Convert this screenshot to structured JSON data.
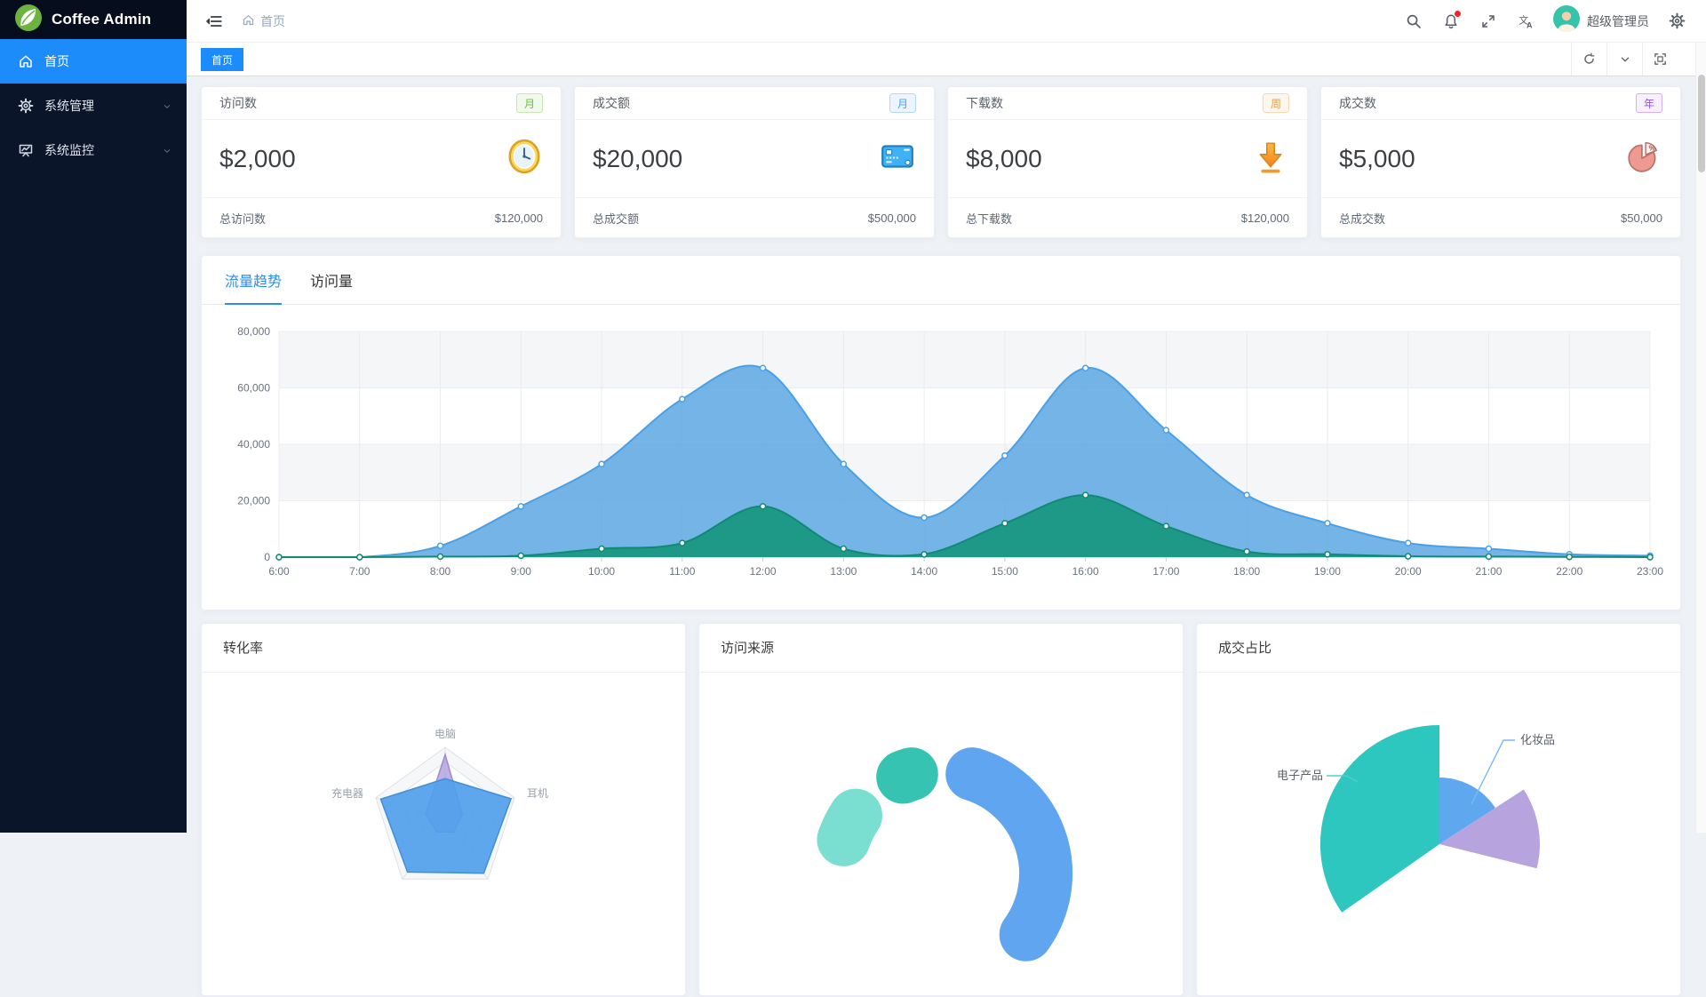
{
  "app": {
    "title": "Coffee Admin"
  },
  "sidebar": {
    "items": [
      {
        "label": "首页",
        "icon": "home-icon",
        "active": true,
        "expandable": false
      },
      {
        "label": "系统管理",
        "icon": "gear-icon",
        "active": false,
        "expandable": true
      },
      {
        "label": "系统监控",
        "icon": "monitor-icon",
        "active": false,
        "expandable": true
      }
    ]
  },
  "navbar": {
    "breadcrumb": "首页",
    "username": "超级管理员",
    "icons": [
      "menu-fold-icon",
      "home-icon",
      "search-icon",
      "bell-icon",
      "fullscreen-icon",
      "translate-icon",
      "gear-icon"
    ],
    "bell_has_dot": true
  },
  "tabsbar": {
    "active_tab": "首页",
    "icons": [
      "refresh-icon",
      "chevron-down-icon",
      "maximize-icon"
    ]
  },
  "stat_cards": [
    {
      "title": "访问数",
      "badge": {
        "text": "月",
        "type": "green"
      },
      "value": "$2,000",
      "icon": "clock-icon",
      "foot_label": "总访问数",
      "foot_value": "$120,000"
    },
    {
      "title": "成交额",
      "badge": {
        "text": "月",
        "type": "blue"
      },
      "value": "$20,000",
      "icon": "credit-card-icon",
      "foot_label": "总成交额",
      "foot_value": "$500,000"
    },
    {
      "title": "下载数",
      "badge": {
        "text": "周",
        "type": "orange"
      },
      "value": "$8,000",
      "icon": "download-icon",
      "foot_label": "总下载数",
      "foot_value": "$120,000"
    },
    {
      "title": "成交数",
      "badge": {
        "text": "年",
        "type": "purple"
      },
      "value": "$5,000",
      "icon": "pie-icon",
      "foot_label": "总成交数",
      "foot_value": "$50,000"
    }
  ],
  "trend_card": {
    "tabs": [
      {
        "label": "流量趋势",
        "active": true
      },
      {
        "label": "访问量",
        "active": false
      }
    ]
  },
  "bottom_cards": [
    {
      "title": "转化率"
    },
    {
      "title": "访问来源"
    },
    {
      "title": "成交占比"
    }
  ],
  "chart_data": [
    {
      "type": "area",
      "title": "流量趋势",
      "x": [
        "6:00",
        "7:00",
        "8:00",
        "9:00",
        "10:00",
        "11:00",
        "12:00",
        "13:00",
        "14:00",
        "15:00",
        "16:00",
        "17:00",
        "18:00",
        "19:00",
        "20:00",
        "21:00",
        "22:00",
        "23:00"
      ],
      "ylim": [
        0,
        80000
      ],
      "yticks": [
        "0",
        "20,000",
        "40,000",
        "60,000",
        "80,000"
      ],
      "grid": true,
      "split_area": true,
      "series": [
        {
          "name": "blue-area",
          "line": "#4aa0e6",
          "fill": "rgba(93,167,227,0.85)",
          "values": [
            0,
            0,
            4000,
            18000,
            33000,
            56000,
            67000,
            33000,
            14000,
            36000,
            67000,
            45000,
            22000,
            12000,
            5000,
            3000,
            1000,
            500
          ]
        },
        {
          "name": "teal-area",
          "line": "#108a72",
          "fill": "rgba(23,151,127,0.92)",
          "values": [
            0,
            0,
            200,
            500,
            3000,
            5000,
            18000,
            3000,
            1000,
            12000,
            22000,
            11000,
            2000,
            1000,
            300,
            200,
            100,
            0
          ]
        }
      ]
    },
    {
      "type": "radar",
      "title": "转化率",
      "axes": 5,
      "labels": [
        "电脑",
        "耳机",
        "",
        "",
        "充电器"
      ],
      "max": 1,
      "series": [
        {
          "name": "purple-radar",
          "color": "rgba(182,162,222,0.85)",
          "stroke": "#9f8bd0",
          "values": [
            0.9,
            0.25,
            0.2,
            0.2,
            0.28
          ]
        },
        {
          "name": "blue-radar",
          "color": "rgba(80,160,235,0.92)",
          "stroke": "#3f8fd8",
          "values": [
            0.57,
            0.95,
            0.9,
            0.88,
            0.93
          ]
        }
      ]
    },
    {
      "type": "donut",
      "title": "访问来源",
      "inner_radius": 87,
      "outer_radius": 147,
      "segments": [
        {
          "color": "#5fa5f0",
          "start": 17,
          "end": 126
        },
        {
          "color": "#36c3b2",
          "start": -22,
          "end": -17
        },
        {
          "color": "#7adfd0",
          "start": -71,
          "end": -56
        }
      ]
    },
    {
      "type": "rose",
      "title": "成交占比",
      "slices": [
        {
          "label": "电子产品",
          "color": "#2ec7c0",
          "start": -125,
          "end": 0,
          "radius": 134,
          "label_color": "#5b6069",
          "leader_color": "#4fd0c6"
        },
        {
          "label": "化妆品",
          "color": "#5fa8f0",
          "start": 0,
          "end": 57,
          "radius": 75,
          "label_color": "#5b6069",
          "leader_color": "#7ab8f5"
        },
        {
          "label": "",
          "color": "#b7a3de",
          "start": 57,
          "end": 104,
          "radius": 113
        }
      ]
    }
  ],
  "colors": {
    "accent": "#1d8cfb",
    "sidebar_bg": "#0b1529",
    "content_bg": "#eef1f5",
    "badge_red": "#f5222d"
  }
}
